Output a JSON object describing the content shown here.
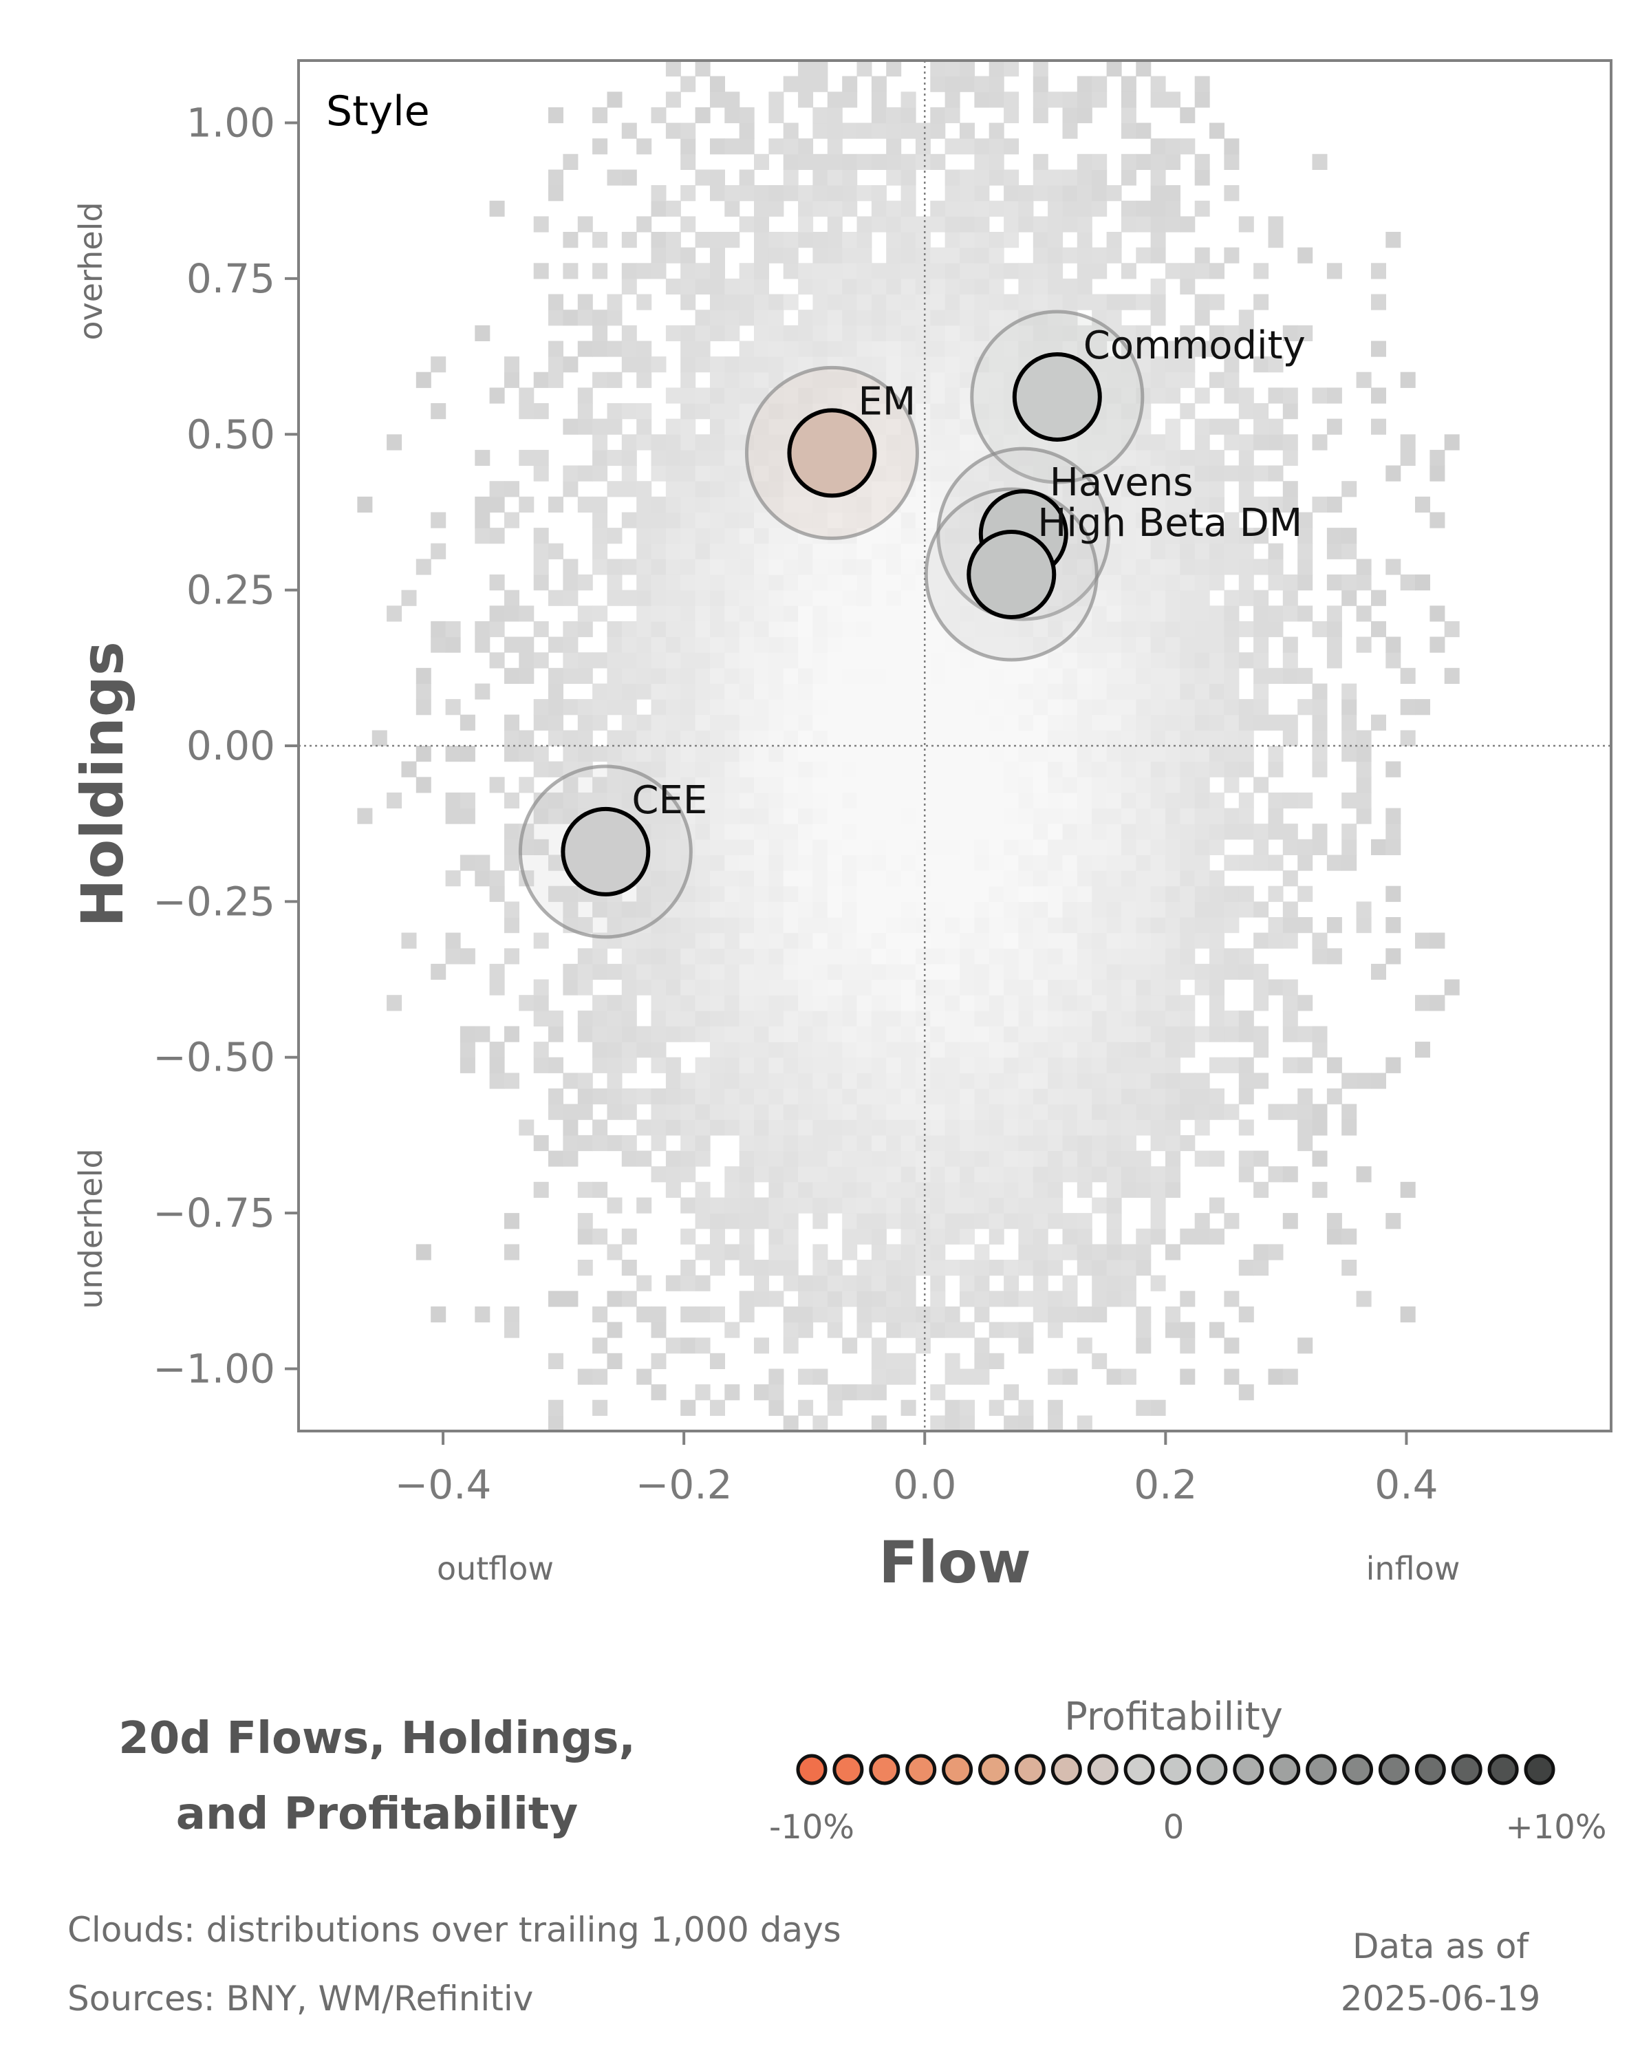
{
  "chart_data": {
    "type": "scatter",
    "panel_label": "Style",
    "xlabel": "Flow",
    "ylabel": "Holdings",
    "xlim": [
      -0.52,
      0.57
    ],
    "ylim": [
      -1.1,
      1.1
    ],
    "xticks": [
      -0.4,
      -0.2,
      0.0,
      0.2,
      0.4
    ],
    "xtick_labels": [
      "−0.4",
      "−0.2",
      "0.0",
      "0.2",
      "0.4"
    ],
    "yticks": [
      1.0,
      0.75,
      0.5,
      0.25,
      0.0,
      -0.25,
      -0.5,
      -0.75,
      -1.0
    ],
    "ytick_labels": [
      "1.00",
      "0.75",
      "0.50",
      "0.25",
      "0.00",
      "−0.25",
      "−0.50",
      "−0.75",
      "−1.00"
    ],
    "x_direction_labels": {
      "negative": "outflow",
      "positive": "inflow"
    },
    "y_direction_labels": {
      "positive": "overheld",
      "negative": "underheld"
    },
    "reference_lines": {
      "x": 0.0,
      "y": 0.0
    },
    "points": [
      {
        "label": "Commodity",
        "x": 0.11,
        "y": 0.56,
        "profitability": 0.0,
        "color": "#c9cbca"
      },
      {
        "label": "EM",
        "x": -0.077,
        "y": 0.47,
        "profitability": -3.0,
        "color": "#d6bdb0"
      },
      {
        "label": "Havens",
        "x": 0.082,
        "y": 0.34,
        "profitability": 0.5,
        "color": "#c3c5c4"
      },
      {
        "label": "High Beta DM",
        "x": 0.072,
        "y": 0.275,
        "profitability": 0.5,
        "color": "#c3c5c4"
      },
      {
        "label": "CEE",
        "x": -0.265,
        "y": -0.17,
        "profitability": 0.0,
        "color": "#cdcdcd"
      }
    ],
    "clouds": "distributions over trailing 1,000 days"
  },
  "footer": {
    "title_line1": "20d Flows, Holdings,",
    "title_line2": "and Profitability",
    "clouds_note": "Clouds:  distributions over trailing 1,000 days",
    "sources_note": "Sources:  BNY, WM/Refinitiv",
    "data_as_of_label": "Data as of",
    "data_as_of_date": "2025-06-19"
  },
  "legend": {
    "title": "Profitability",
    "min_label": "-10%",
    "mid_label": "0",
    "max_label": "+10%",
    "colors": [
      "#f0704a",
      "#f07a53",
      "#ef845d",
      "#ec8f68",
      "#e89b75",
      "#e3a683",
      "#dcb19a",
      "#d6bdb0",
      "#d2c8c3",
      "#cfcfcd",
      "#c6c8c7",
      "#b9bbba",
      "#acaead",
      "#9fa1a0",
      "#929493",
      "#858786",
      "#787a79",
      "#6b6d6c",
      "#5e605f",
      "#4f5150",
      "#404241"
    ]
  }
}
